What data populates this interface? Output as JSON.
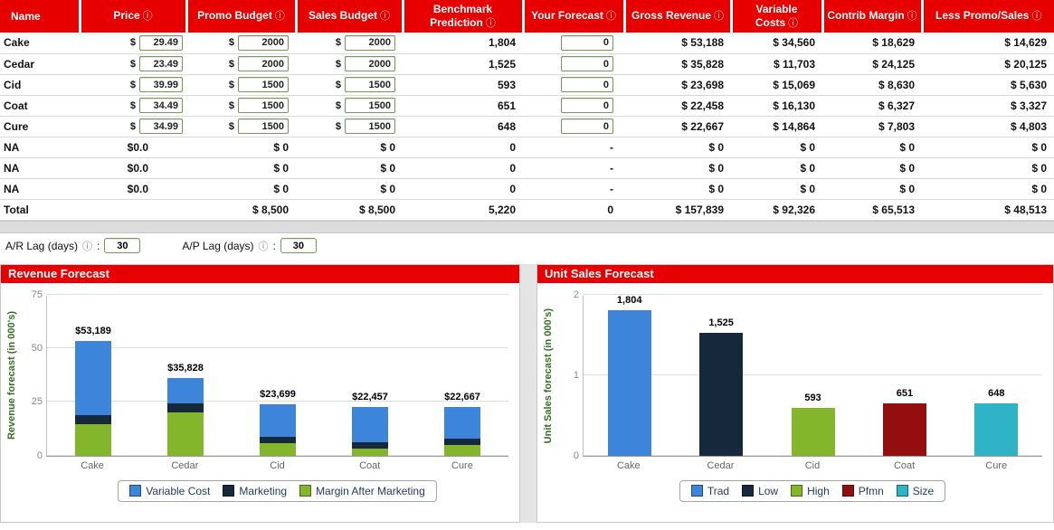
{
  "table": {
    "columns": [
      {
        "label": "Name",
        "info": false
      },
      {
        "label": "Price",
        "info": true
      },
      {
        "label": "Promo Budget",
        "info": true
      },
      {
        "label": "Sales Budget",
        "info": true
      },
      {
        "label": "Benchmark Prediction",
        "info": true
      },
      {
        "label": "Your Forecast",
        "info": true
      },
      {
        "label": "Gross Revenue",
        "info": true
      },
      {
        "label": "Variable Costs",
        "info": true
      },
      {
        "label": "Contrib Margin",
        "info": true
      },
      {
        "label": "Less Promo/Sales",
        "info": true
      }
    ],
    "rows": [
      {
        "type": "product",
        "name": "Cake",
        "price": "29.49",
        "promo": "2000",
        "sales": "2000",
        "benchmark": "1,804",
        "forecast": "0",
        "gross": "$ 53,188",
        "variable": "$ 34,560",
        "contrib": "$ 18,629",
        "less": "$ 14,629"
      },
      {
        "type": "product",
        "name": "Cedar",
        "price": "23.49",
        "promo": "2000",
        "sales": "2000",
        "benchmark": "1,525",
        "forecast": "0",
        "gross": "$ 35,828",
        "variable": "$ 11,703",
        "contrib": "$ 24,125",
        "less": "$ 20,125"
      },
      {
        "type": "product",
        "name": "Cid",
        "price": "39.99",
        "promo": "1500",
        "sales": "1500",
        "benchmark": "593",
        "forecast": "0",
        "gross": "$ 23,698",
        "variable": "$ 15,069",
        "contrib": "$ 8,630",
        "less": "$ 5,630"
      },
      {
        "type": "product",
        "name": "Coat",
        "price": "34.49",
        "promo": "1500",
        "sales": "1500",
        "benchmark": "651",
        "forecast": "0",
        "gross": "$ 22,458",
        "variable": "$ 16,130",
        "contrib": "$ 6,327",
        "less": "$ 3,327"
      },
      {
        "type": "product",
        "name": "Cure",
        "price": "34.99",
        "promo": "1500",
        "sales": "1500",
        "benchmark": "648",
        "forecast": "0",
        "gross": "$ 22,667",
        "variable": "$ 14,864",
        "contrib": "$ 7,803",
        "less": "$ 4,803"
      },
      {
        "type": "empty",
        "name": "NA",
        "price": "$0.0",
        "promo": "$ 0",
        "sales": "$ 0",
        "benchmark": "0",
        "forecast": "-",
        "gross": "$ 0",
        "variable": "$ 0",
        "contrib": "$ 0",
        "less": "$ 0"
      },
      {
        "type": "empty",
        "name": "NA",
        "price": "$0.0",
        "promo": "$ 0",
        "sales": "$ 0",
        "benchmark": "0",
        "forecast": "-",
        "gross": "$ 0",
        "variable": "$ 0",
        "contrib": "$ 0",
        "less": "$ 0"
      },
      {
        "type": "empty",
        "name": "NA",
        "price": "$0.0",
        "promo": "$ 0",
        "sales": "$ 0",
        "benchmark": "0",
        "forecast": "-",
        "gross": "$ 0",
        "variable": "$ 0",
        "contrib": "$ 0",
        "less": "$ 0"
      },
      {
        "type": "total",
        "name": "Total",
        "price": "",
        "promo": "$ 8,500",
        "sales": "$ 8,500",
        "benchmark": "5,220",
        "forecast": "0",
        "gross": "$ 157,839",
        "variable": "$ 92,326",
        "contrib": "$ 65,513",
        "less": "$ 48,513"
      }
    ]
  },
  "lag": {
    "ar_label": "A/R Lag (days)",
    "ar_value": "30",
    "ap_label": "A/P Lag (days)",
    "ap_value": "30"
  },
  "chart_data": [
    {
      "type": "bar",
      "stacked": true,
      "title": "Revenue Forecast",
      "ylabel": "Revenue forecast (in 000's)",
      "xlabel": "",
      "categories": [
        "Cake",
        "Cedar",
        "Cid",
        "Coat",
        "Cure"
      ],
      "series": [
        {
          "name": "Margin After Marketing",
          "color": "#84b62b",
          "values": [
            14.63,
            20.13,
            5.63,
            3.33,
            4.8
          ]
        },
        {
          "name": "Marketing",
          "color": "#16293c",
          "values": [
            4.0,
            4.0,
            3.0,
            3.0,
            3.0
          ]
        },
        {
          "name": "Variable Cost",
          "color": "#3d85db",
          "values": [
            34.56,
            11.7,
            15.07,
            16.13,
            14.86
          ]
        }
      ],
      "bar_labels": [
        "$53,189",
        "$35,828",
        "$23,699",
        "$22,457",
        "$22,667"
      ],
      "bar_totals": [
        53.19,
        35.83,
        23.7,
        22.46,
        22.67
      ],
      "ylim": [
        0,
        75
      ],
      "yticks": [
        0,
        25,
        50,
        75
      ],
      "grid": true,
      "legend_position": "bottom",
      "legend": [
        {
          "label": "Variable Cost",
          "color": "#3d85db"
        },
        {
          "label": "Marketing",
          "color": "#16293c"
        },
        {
          "label": "Margin After Marketing",
          "color": "#84b62b"
        }
      ]
    },
    {
      "type": "bar",
      "stacked": false,
      "title": "Unit Sales Forecast",
      "ylabel": "Unit Sales forecast (in 000's)",
      "xlabel": "",
      "categories": [
        "Cake",
        "Cedar",
        "Cid",
        "Coat",
        "Cure"
      ],
      "values": [
        1.804,
        1.525,
        0.593,
        0.651,
        0.648
      ],
      "bar_colors": [
        "#3d85db",
        "#16293c",
        "#84b62b",
        "#930f0f",
        "#2eb3c7"
      ],
      "bar_labels": [
        "1,804",
        "1,525",
        "593",
        "651",
        "648"
      ],
      "ylim": [
        0,
        2
      ],
      "yticks": [
        0,
        1,
        2
      ],
      "grid": true,
      "legend_position": "bottom",
      "legend": [
        {
          "label": "Trad",
          "color": "#3d85db"
        },
        {
          "label": "Low",
          "color": "#16293c"
        },
        {
          "label": "High",
          "color": "#84b62b"
        },
        {
          "label": "Pfmn",
          "color": "#930f0f"
        },
        {
          "label": "Size",
          "color": "#2eb3c7"
        }
      ]
    }
  ],
  "colors": {
    "header_red": "#e60000",
    "input_border_green": "#7d9457",
    "axis_label_green": "#337021",
    "legend_text_navy": "#1f3a5f",
    "chart_area_grey": "#e4e4e4"
  }
}
